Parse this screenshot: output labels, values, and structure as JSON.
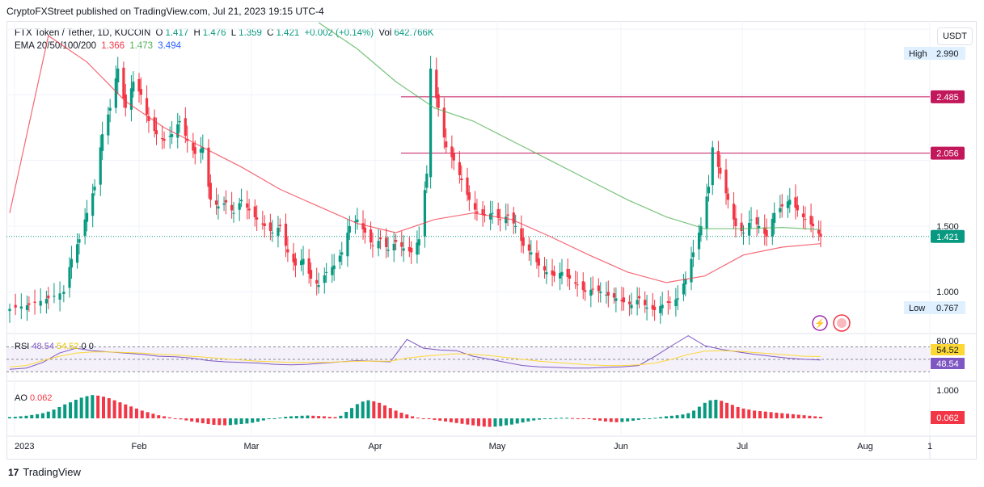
{
  "header": {
    "published": "CryptoFXStreet published on TradingView.com, Jul 21, 2023 19:15 UTC-4"
  },
  "legend": {
    "symbol": "FTX Token / Tether, 1D, KUCOIN",
    "o_label": "O",
    "o": "1.417",
    "h_label": "H",
    "h": "1.476",
    "l_label": "L",
    "l": "1.359",
    "c_label": "C",
    "c": "1.421",
    "change": "+0.002 (+0.14%)",
    "vol_label": "Vol",
    "vol": "642.766K",
    "ema_label": "EMA 20/50/100/200",
    "ema1": "1.366",
    "ema2": "1.473",
    "ema3": "3.494"
  },
  "currency": "USDT",
  "brand": "TradingView",
  "colors": {
    "up": "#089981",
    "down": "#f23645",
    "ema20": "#f23645",
    "ema50": "#4caf50",
    "rsi": "#7e57c2",
    "rsi_ma": "#fdd835",
    "level": "#c2185b"
  },
  "chart_data": [
    {
      "type": "candlestick",
      "title": "FTX Token / Tether, 1D, KUCOIN",
      "x_labels": [
        "2023",
        "Feb",
        "Mar",
        "Apr",
        "May",
        "Jun",
        "Jul",
        "Aug",
        "1"
      ],
      "y_ticks": [
        "1.000",
        "1.500",
        "2.056",
        "2.485"
      ],
      "ylim": [
        0.7,
        3.05
      ],
      "grid": true,
      "price_labels": {
        "high_label": "High",
        "high": "2.990",
        "low_label": "Low",
        "low": "0.767",
        "last": "1.421",
        "level1": "2.485",
        "level2": "2.056"
      },
      "horizontal_levels": [
        2.485,
        2.056
      ],
      "overlays": [
        "EMA 20",
        "EMA 50"
      ],
      "close_path": [
        [
          0,
          0.87
        ],
        [
          10,
          0.9
        ],
        [
          20,
          0.95
        ],
        [
          28,
          1.0
        ],
        [
          32,
          1.25
        ],
        [
          36,
          1.4
        ],
        [
          40,
          1.6
        ],
        [
          44,
          1.8
        ],
        [
          48,
          2.2
        ],
        [
          52,
          2.4
        ],
        [
          56,
          2.7
        ],
        [
          60,
          2.4
        ],
        [
          64,
          2.6
        ],
        [
          68,
          2.5
        ],
        [
          72,
          2.3
        ],
        [
          76,
          2.2
        ],
        [
          80,
          2.15
        ],
        [
          84,
          2.2
        ],
        [
          88,
          2.3
        ],
        [
          92,
          2.15
        ],
        [
          96,
          2.05
        ],
        [
          100,
          2.1
        ],
        [
          104,
          1.7
        ],
        [
          108,
          1.65
        ],
        [
          112,
          1.68
        ],
        [
          116,
          1.6
        ],
        [
          120,
          1.7
        ],
        [
          124,
          1.62
        ],
        [
          128,
          1.55
        ],
        [
          132,
          1.5
        ],
        [
          136,
          1.45
        ],
        [
          140,
          1.5
        ],
        [
          144,
          1.3
        ],
        [
          148,
          1.2
        ],
        [
          152,
          1.25
        ],
        [
          156,
          1.1
        ],
        [
          160,
          1.05
        ],
        [
          164,
          1.15
        ],
        [
          168,
          1.2
        ],
        [
          172,
          1.3
        ],
        [
          176,
          1.5
        ],
        [
          180,
          1.55
        ],
        [
          184,
          1.45
        ],
        [
          188,
          1.35
        ],
        [
          192,
          1.4
        ],
        [
          196,
          1.32
        ],
        [
          200,
          1.38
        ],
        [
          204,
          1.33
        ],
        [
          208,
          1.3
        ],
        [
          212,
          1.4
        ],
        [
          216,
          1.9
        ],
        [
          218,
          2.7
        ],
        [
          222,
          2.4
        ],
        [
          226,
          2.1
        ],
        [
          230,
          2.0
        ],
        [
          234,
          1.85
        ],
        [
          238,
          1.7
        ],
        [
          242,
          1.6
        ],
        [
          246,
          1.58
        ],
        [
          250,
          1.6
        ],
        [
          254,
          1.55
        ],
        [
          258,
          1.58
        ],
        [
          262,
          1.5
        ],
        [
          266,
          1.35
        ],
        [
          270,
          1.3
        ],
        [
          274,
          1.2
        ],
        [
          278,
          1.15
        ],
        [
          282,
          1.12
        ],
        [
          286,
          1.15
        ],
        [
          290,
          1.1
        ],
        [
          294,
          1.05
        ],
        [
          298,
          1.0
        ],
        [
          302,
          1.02
        ],
        [
          306,
          1.0
        ],
        [
          310,
          0.97
        ],
        [
          314,
          0.95
        ],
        [
          318,
          0.92
        ],
        [
          322,
          0.9
        ],
        [
          326,
          0.95
        ],
        [
          330,
          0.88
        ],
        [
          334,
          0.86
        ],
        [
          338,
          0.9
        ],
        [
          342,
          0.92
        ],
        [
          346,
          0.95
        ],
        [
          350,
          1.1
        ],
        [
          354,
          1.3
        ],
        [
          358,
          1.5
        ],
        [
          362,
          1.8
        ],
        [
          364,
          2.1
        ],
        [
          368,
          1.9
        ],
        [
          372,
          1.7
        ],
        [
          376,
          1.5
        ],
        [
          380,
          1.45
        ],
        [
          384,
          1.55
        ],
        [
          388,
          1.5
        ],
        [
          392,
          1.42
        ],
        [
          396,
          1.6
        ],
        [
          400,
          1.65
        ],
        [
          404,
          1.7
        ],
        [
          408,
          1.62
        ],
        [
          412,
          1.55
        ],
        [
          416,
          1.5
        ],
        [
          420,
          1.421
        ]
      ],
      "ema20_path": [
        [
          0,
          1.6
        ],
        [
          20,
          2.95
        ],
        [
          40,
          2.75
        ],
        [
          60,
          2.45
        ],
        [
          80,
          2.25
        ],
        [
          100,
          2.1
        ],
        [
          120,
          1.95
        ],
        [
          140,
          1.78
        ],
        [
          160,
          1.65
        ],
        [
          180,
          1.52
        ],
        [
          200,
          1.45
        ],
        [
          220,
          1.55
        ],
        [
          240,
          1.6
        ],
        [
          260,
          1.55
        ],
        [
          280,
          1.42
        ],
        [
          300,
          1.28
        ],
        [
          320,
          1.15
        ],
        [
          340,
          1.07
        ],
        [
          360,
          1.12
        ],
        [
          380,
          1.28
        ],
        [
          400,
          1.34
        ],
        [
          420,
          1.366
        ]
      ],
      "ema50_path": [
        [
          160,
          3.05
        ],
        [
          180,
          2.85
        ],
        [
          200,
          2.6
        ],
        [
          220,
          2.4
        ],
        [
          240,
          2.3
        ],
        [
          260,
          2.15
        ],
        [
          280,
          2.0
        ],
        [
          300,
          1.85
        ],
        [
          320,
          1.7
        ],
        [
          340,
          1.57
        ],
        [
          360,
          1.48
        ],
        [
          380,
          1.48
        ],
        [
          400,
          1.49
        ],
        [
          420,
          1.473
        ]
      ]
    },
    {
      "type": "line",
      "title": "RSI",
      "value_label": "RSI",
      "value": "48.54",
      "ma_value": "54.52",
      "extra": "0 0",
      "y_ticks": [
        "80.00",
        "54.52",
        "48.54"
      ],
      "ylim": [
        20,
        85
      ],
      "band": [
        30,
        70
      ],
      "series": [
        {
          "name": "",
          "values": [
            34,
            36,
            45,
            60,
            68,
            64,
            62,
            60,
            58,
            55,
            54,
            52,
            48,
            46,
            45,
            44,
            42,
            41,
            42,
            44,
            46,
            48,
            47,
            46,
            82,
            68,
            65,
            64,
            55,
            50,
            45,
            40,
            38,
            37,
            36,
            36,
            37,
            38,
            40,
            55,
            72,
            88,
            72,
            66,
            62,
            58,
            55,
            52,
            50,
            49
          ]
        },
        {
          "name": "",
          "values": [
            38,
            40,
            48,
            55,
            60,
            62,
            62,
            61,
            60,
            58,
            57,
            55,
            53,
            51,
            49,
            47,
            46,
            45,
            45,
            45,
            46,
            47,
            47,
            47,
            52,
            55,
            57,
            59,
            58,
            56,
            53,
            50,
            47,
            45,
            43,
            41,
            40,
            40,
            41,
            44,
            50,
            58,
            63,
            64,
            63,
            61,
            59,
            57,
            55,
            54.52
          ]
        }
      ]
    },
    {
      "type": "bar",
      "title": "AO",
      "value_label": "AO",
      "value": "0.062",
      "y_ticks": [
        "1.000",
        "0.062"
      ],
      "ylim": [
        -0.6,
        1.0
      ],
      "values": [
        0.05,
        0.06,
        0.08,
        0.1,
        0.13,
        0.16,
        0.2,
        0.26,
        0.34,
        0.44,
        0.54,
        0.62,
        0.72,
        0.8,
        0.86,
        0.9,
        0.88,
        0.84,
        0.78,
        0.7,
        0.62,
        0.54,
        0.46,
        0.38,
        0.3,
        0.24,
        0.18,
        0.12,
        0.08,
        0.04,
        0.0,
        -0.04,
        -0.08,
        -0.12,
        -0.16,
        -0.19,
        -0.22,
        -0.25,
        -0.26,
        -0.27,
        -0.26,
        -0.24,
        -0.22,
        -0.2,
        -0.17,
        -0.13,
        -0.08,
        -0.03,
        0.0,
        0.03,
        0.06,
        0.08,
        0.09,
        0.1,
        0.11,
        0.1,
        0.09,
        0.08,
        0.06,
        0.05,
        0.1,
        0.25,
        0.4,
        0.55,
        0.65,
        0.7,
        0.66,
        0.6,
        0.5,
        0.4,
        0.3,
        0.22,
        0.15,
        0.08,
        0.03,
        0.0,
        -0.03,
        -0.06,
        -0.09,
        -0.12,
        -0.15,
        -0.18,
        -0.21,
        -0.24,
        -0.27,
        -0.3,
        -0.32,
        -0.33,
        -0.32,
        -0.3,
        -0.27,
        -0.24,
        -0.2,
        -0.16,
        -0.12,
        -0.08,
        -0.05,
        -0.03,
        -0.01,
        0.01,
        0.02,
        0.02,
        0.01,
        0.0,
        -0.01,
        -0.03,
        -0.06,
        -0.09,
        -0.12,
        -0.14,
        -0.15,
        -0.14,
        -0.12,
        -0.09,
        -0.06,
        -0.03,
        0.0,
        0.02,
        0.05,
        0.08,
        0.1,
        0.12,
        0.15,
        0.2,
        0.3,
        0.45,
        0.6,
        0.7,
        0.72,
        0.68,
        0.6,
        0.52,
        0.44,
        0.38,
        0.34,
        0.3,
        0.28,
        0.26,
        0.24,
        0.22,
        0.2,
        0.18,
        0.16,
        0.14,
        0.12,
        0.1,
        0.08,
        0.062
      ]
    }
  ]
}
